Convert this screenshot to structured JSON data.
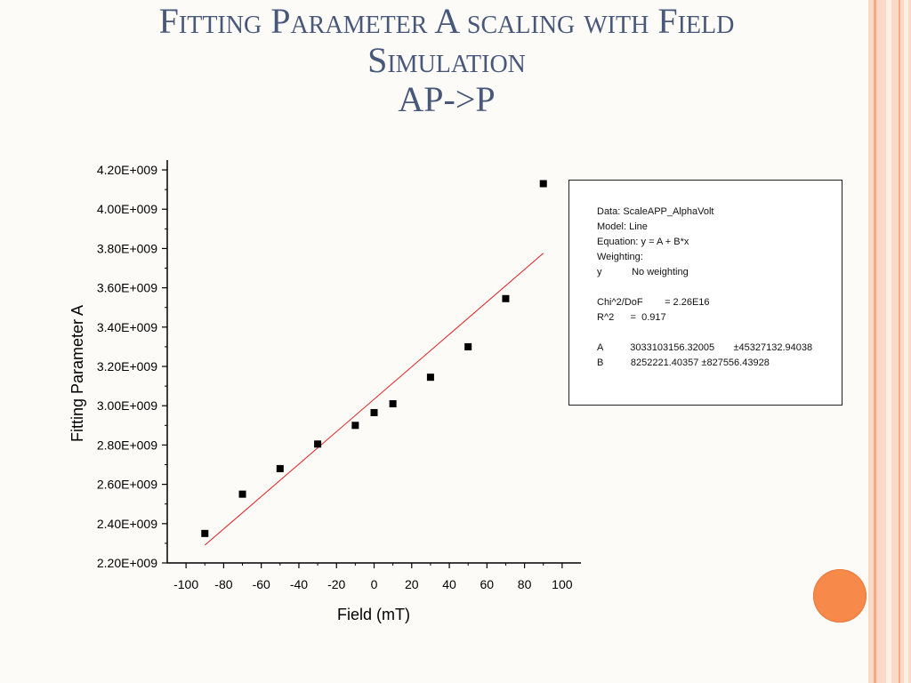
{
  "title": {
    "line1": "Fitting Parameter A scaling with Field",
    "line2": "Simulation",
    "line3": "AP->P"
  },
  "chart_data": {
    "type": "scatter",
    "xlabel": "Field (mT)",
    "ylabel": "Fitting Parameter A",
    "xlim": [
      -110,
      110
    ],
    "ylim": [
      2200000000,
      4250000000
    ],
    "x_ticks": [
      -100,
      -80,
      -60,
      -40,
      -20,
      0,
      20,
      40,
      60,
      80,
      100
    ],
    "x_tick_labels": [
      "-100",
      "-80",
      "-60",
      "-40",
      "-20",
      "0",
      "20",
      "40",
      "60",
      "80",
      "100"
    ],
    "y_ticks": [
      2200000000,
      2400000000,
      2600000000,
      2800000000,
      3000000000,
      3200000000,
      3400000000,
      3600000000,
      3800000000,
      4000000000,
      4200000000
    ],
    "y_tick_labels": [
      "2.20E+009",
      "2.40E+009",
      "2.60E+009",
      "2.80E+009",
      "3.00E+009",
      "3.20E+009",
      "3.40E+009",
      "3.60E+009",
      "3.80E+009",
      "4.00E+009",
      "4.20E+009"
    ],
    "series": [
      {
        "x": [
          -90,
          -70,
          -50,
          -30,
          -10,
          0,
          10,
          30,
          50,
          70,
          90
        ],
        "y": [
          2350000000,
          2550000000,
          2680000000,
          2805000000,
          2900000000,
          2965000000,
          3010000000,
          3145000000,
          3300000000,
          3545000000,
          4130000000
        ]
      }
    ],
    "fit_line": {
      "x": [
        -90,
        90
      ],
      "intercept": 3033103156.32005,
      "slope": 8252221.40357
    },
    "colors": {
      "points": "#000000",
      "fit": "#e02020"
    },
    "grid": false
  },
  "fit_stats": [
    "Data: ScaleAPP_AlphaVolt",
    "Model: Line",
    "Equation: y = A + B*x",
    "Weighting:",
    "y           No weighting",
    "",
    "Chi^2/DoF        = 2.26E16",
    "R^2      =  0.917",
    "",
    "A          3033103156.32005       ±45327132.94038",
    "B          8252221.40357 ±827556.43928"
  ]
}
